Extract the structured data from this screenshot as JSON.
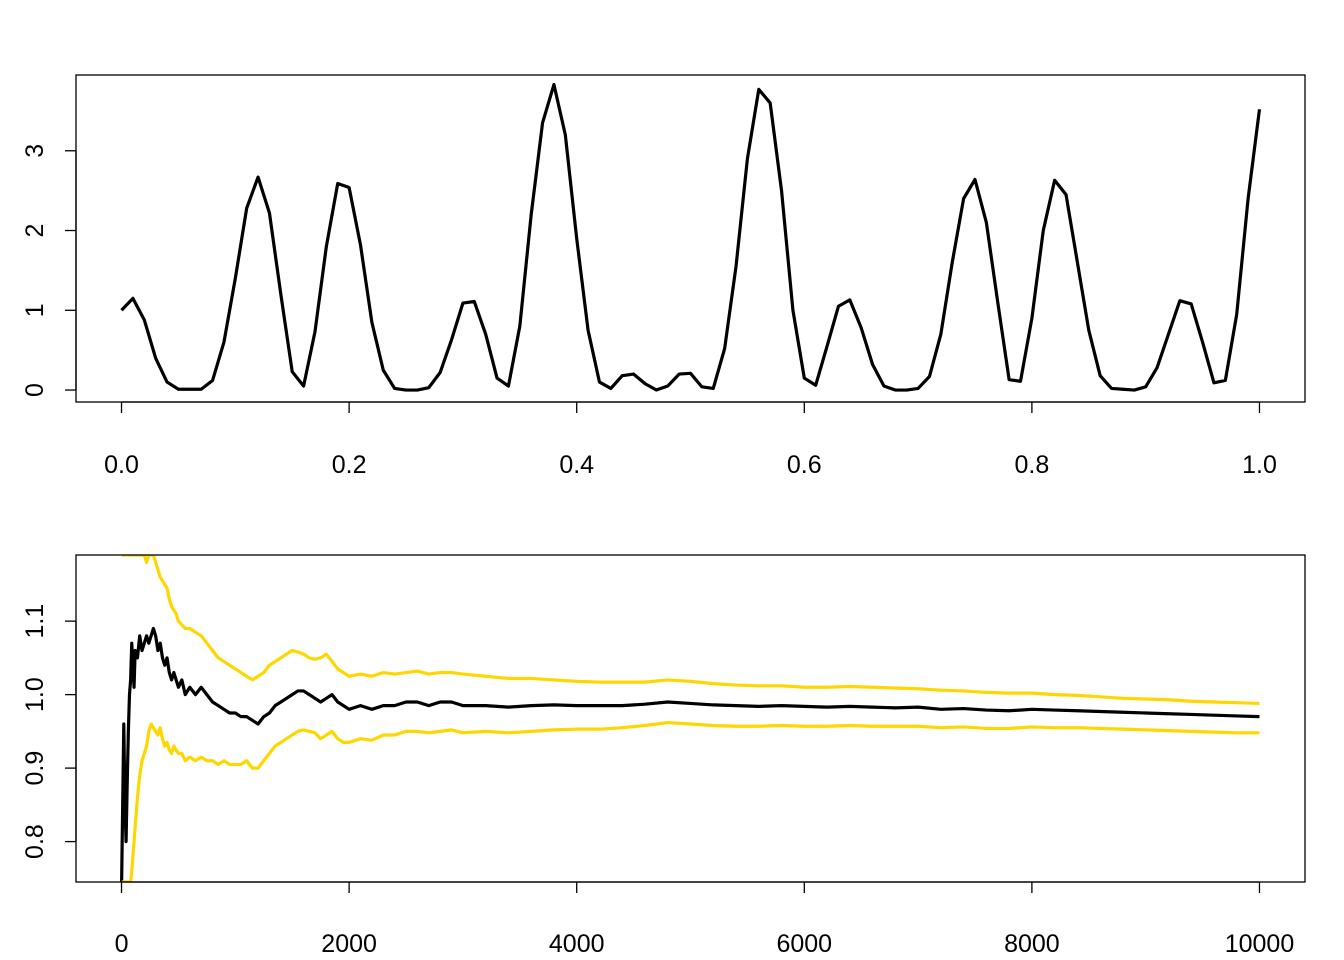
{
  "chart_data": [
    {
      "type": "line",
      "title": "",
      "xlabel": "",
      "ylabel": "",
      "xlim": [
        -0.04,
        1.04
      ],
      "ylim": [
        -0.15,
        3.95
      ],
      "xticks": [
        0.0,
        0.2,
        0.4,
        0.6,
        0.8,
        1.0
      ],
      "xtick_labels": [
        "0.0",
        "0.2",
        "0.4",
        "0.6",
        "0.8",
        "1.0"
      ],
      "yticks": [
        0,
        1,
        2,
        3
      ],
      "ytick_labels": [
        "0",
        "1",
        "2",
        "3"
      ],
      "grid": false,
      "series": [
        {
          "color": "#000000",
          "x": [
            0.0,
            0.01,
            0.02,
            0.03,
            0.04,
            0.05,
            0.06,
            0.07,
            0.08,
            0.09,
            0.1,
            0.11,
            0.12,
            0.13,
            0.14,
            0.15,
            0.16,
            0.17,
            0.18,
            0.19,
            0.2,
            0.21,
            0.22,
            0.23,
            0.24,
            0.25,
            0.26,
            0.27,
            0.28,
            0.29,
            0.3,
            0.31,
            0.32,
            0.33,
            0.34,
            0.35,
            0.36,
            0.37,
            0.38,
            0.39,
            0.4,
            0.41,
            0.42,
            0.43,
            0.44,
            0.45,
            0.46,
            0.47,
            0.48,
            0.49,
            0.5,
            0.51,
            0.52,
            0.53,
            0.54,
            0.55,
            0.56,
            0.57,
            0.58,
            0.59,
            0.6,
            0.61,
            0.62,
            0.63,
            0.64,
            0.65,
            0.66,
            0.67,
            0.68,
            0.69,
            0.7,
            0.71,
            0.72,
            0.73,
            0.74,
            0.75,
            0.76,
            0.77,
            0.78,
            0.79,
            0.8,
            0.81,
            0.82,
            0.83,
            0.84,
            0.85,
            0.86,
            0.87,
            0.88,
            0.89,
            0.9,
            0.91,
            0.92,
            0.93,
            0.94,
            0.95,
            0.96,
            0.97,
            0.98,
            0.99,
            1.0
          ],
          "values": [
            1.0,
            1.15,
            0.88,
            0.4,
            0.1,
            0.01,
            0.01,
            0.01,
            0.12,
            0.6,
            1.4,
            2.28,
            2.67,
            2.22,
            1.2,
            0.23,
            0.05,
            0.73,
            1.8,
            2.59,
            2.54,
            1.82,
            0.85,
            0.25,
            0.02,
            0.0,
            0.0,
            0.03,
            0.22,
            0.63,
            1.09,
            1.11,
            0.7,
            0.15,
            0.05,
            0.8,
            2.2,
            3.35,
            3.83,
            3.2,
            1.9,
            0.75,
            0.1,
            0.02,
            0.18,
            0.2,
            0.08,
            0.0,
            0.05,
            0.2,
            0.21,
            0.04,
            0.02,
            0.52,
            1.55,
            2.9,
            3.77,
            3.6,
            2.5,
            1.0,
            0.15,
            0.06,
            0.55,
            1.05,
            1.13,
            0.78,
            0.32,
            0.05,
            0.0,
            0.0,
            0.02,
            0.17,
            0.7,
            1.6,
            2.4,
            2.64,
            2.1,
            1.1,
            0.13,
            0.11,
            0.9,
            2.0,
            2.63,
            2.45,
            1.6,
            0.75,
            0.18,
            0.02,
            0.01,
            0.0,
            0.04,
            0.28,
            0.7,
            1.12,
            1.08,
            0.6,
            0.09,
            0.12,
            0.95,
            2.4,
            3.52
          ]
        }
      ]
    },
    {
      "type": "line",
      "title": "",
      "xlabel": "",
      "ylabel": "",
      "xlim": [
        -400,
        10400
      ],
      "ylim": [
        0.745,
        1.19
      ],
      "xticks": [
        0,
        2000,
        4000,
        6000,
        8000,
        10000
      ],
      "xtick_labels": [
        "0",
        "2000",
        "4000",
        "6000",
        "8000",
        "10000"
      ],
      "yticks": [
        0.8,
        0.9,
        1.0,
        1.1
      ],
      "ytick_labels": [
        "0.8",
        "0.9",
        "1.0",
        "1.1"
      ],
      "grid": false,
      "x": [
        1,
        20,
        30,
        40,
        50,
        60,
        70,
        80,
        90,
        100,
        110,
        120,
        140,
        160,
        180,
        200,
        220,
        240,
        260,
        280,
        300,
        320,
        340,
        360,
        380,
        400,
        420,
        440,
        460,
        480,
        500,
        530,
        560,
        600,
        650,
        700,
        750,
        800,
        850,
        900,
        950,
        1000,
        1050,
        1100,
        1150,
        1200,
        1250,
        1300,
        1350,
        1400,
        1450,
        1500,
        1550,
        1600,
        1650,
        1700,
        1750,
        1800,
        1850,
        1900,
        1950,
        2000,
        2100,
        2200,
        2300,
        2400,
        2500,
        2600,
        2700,
        2800,
        2900,
        3000,
        3200,
        3400,
        3600,
        3800,
        4000,
        4200,
        4400,
        4600,
        4800,
        5000,
        5200,
        5400,
        5600,
        5800,
        6000,
        6200,
        6400,
        6600,
        6800,
        7000,
        7200,
        7400,
        7600,
        7800,
        8000,
        8200,
        8400,
        8600,
        8800,
        9000,
        9200,
        9400,
        9600,
        9800,
        10000
      ],
      "series": [
        {
          "color": "#000000",
          "values": [
            0.745,
            0.96,
            0.85,
            0.8,
            0.88,
            0.95,
            1.0,
            1.02,
            1.07,
            1.04,
            1.01,
            1.06,
            1.05,
            1.08,
            1.06,
            1.07,
            1.08,
            1.07,
            1.08,
            1.09,
            1.08,
            1.06,
            1.07,
            1.05,
            1.04,
            1.05,
            1.03,
            1.02,
            1.03,
            1.02,
            1.01,
            1.02,
            1.0,
            1.01,
            1.0,
            1.01,
            1.0,
            0.99,
            0.985,
            0.98,
            0.975,
            0.975,
            0.97,
            0.97,
            0.965,
            0.96,
            0.97,
            0.975,
            0.985,
            0.99,
            0.995,
            1.0,
            1.005,
            1.005,
            1.0,
            0.995,
            0.99,
            0.995,
            1.0,
            0.99,
            0.985,
            0.98,
            0.985,
            0.98,
            0.985,
            0.985,
            0.99,
            0.99,
            0.985,
            0.99,
            0.99,
            0.985,
            0.985,
            0.983,
            0.985,
            0.986,
            0.985,
            0.985,
            0.985,
            0.987,
            0.99,
            0.988,
            0.986,
            0.985,
            0.984,
            0.985,
            0.984,
            0.983,
            0.984,
            0.983,
            0.982,
            0.983,
            0.98,
            0.981,
            0.979,
            0.978,
            0.98,
            0.979,
            0.978,
            0.977,
            0.976,
            0.975,
            0.974,
            0.973,
            0.972,
            0.971,
            0.97
          ]
        },
        {
          "color": "#ffd700",
          "values": [
            1.19,
            1.19,
            1.19,
            1.19,
            1.19,
            1.19,
            1.19,
            1.19,
            1.19,
            1.19,
            1.19,
            1.19,
            1.19,
            1.19,
            1.19,
            1.19,
            1.18,
            1.19,
            1.19,
            1.19,
            1.18,
            1.17,
            1.16,
            1.155,
            1.15,
            1.145,
            1.13,
            1.12,
            1.115,
            1.11,
            1.1,
            1.095,
            1.09,
            1.09,
            1.085,
            1.08,
            1.07,
            1.06,
            1.05,
            1.045,
            1.04,
            1.035,
            1.03,
            1.025,
            1.02,
            1.025,
            1.03,
            1.04,
            1.045,
            1.05,
            1.055,
            1.06,
            1.058,
            1.055,
            1.05,
            1.048,
            1.05,
            1.055,
            1.045,
            1.035,
            1.03,
            1.025,
            1.028,
            1.025,
            1.03,
            1.028,
            1.03,
            1.032,
            1.028,
            1.03,
            1.03,
            1.028,
            1.025,
            1.022,
            1.022,
            1.02,
            1.018,
            1.017,
            1.017,
            1.017,
            1.02,
            1.018,
            1.015,
            1.013,
            1.012,
            1.012,
            1.01,
            1.01,
            1.011,
            1.01,
            1.009,
            1.008,
            1.006,
            1.005,
            1.003,
            1.002,
            1.002,
            1.0,
            0.999,
            0.997,
            0.995,
            0.994,
            0.993,
            0.991,
            0.99,
            0.989,
            0.988
          ]
        },
        {
          "color": "#ffd700",
          "values": [
            0.745,
            0.745,
            0.745,
            0.745,
            0.745,
            0.745,
            0.745,
            0.745,
            0.76,
            0.78,
            0.8,
            0.82,
            0.86,
            0.89,
            0.91,
            0.92,
            0.93,
            0.95,
            0.96,
            0.955,
            0.95,
            0.945,
            0.955,
            0.94,
            0.93,
            0.935,
            0.925,
            0.92,
            0.93,
            0.925,
            0.92,
            0.92,
            0.91,
            0.915,
            0.91,
            0.915,
            0.91,
            0.91,
            0.905,
            0.91,
            0.905,
            0.905,
            0.905,
            0.91,
            0.9,
            0.9,
            0.91,
            0.92,
            0.93,
            0.935,
            0.94,
            0.945,
            0.95,
            0.952,
            0.95,
            0.948,
            0.94,
            0.945,
            0.95,
            0.94,
            0.935,
            0.935,
            0.94,
            0.938,
            0.945,
            0.945,
            0.95,
            0.95,
            0.948,
            0.95,
            0.952,
            0.948,
            0.95,
            0.948,
            0.95,
            0.952,
            0.953,
            0.953,
            0.955,
            0.958,
            0.962,
            0.96,
            0.958,
            0.957,
            0.957,
            0.958,
            0.957,
            0.957,
            0.958,
            0.957,
            0.957,
            0.957,
            0.955,
            0.956,
            0.954,
            0.954,
            0.956,
            0.955,
            0.955,
            0.954,
            0.953,
            0.952,
            0.951,
            0.95,
            0.949,
            0.948,
            0.948
          ]
        }
      ]
    }
  ]
}
